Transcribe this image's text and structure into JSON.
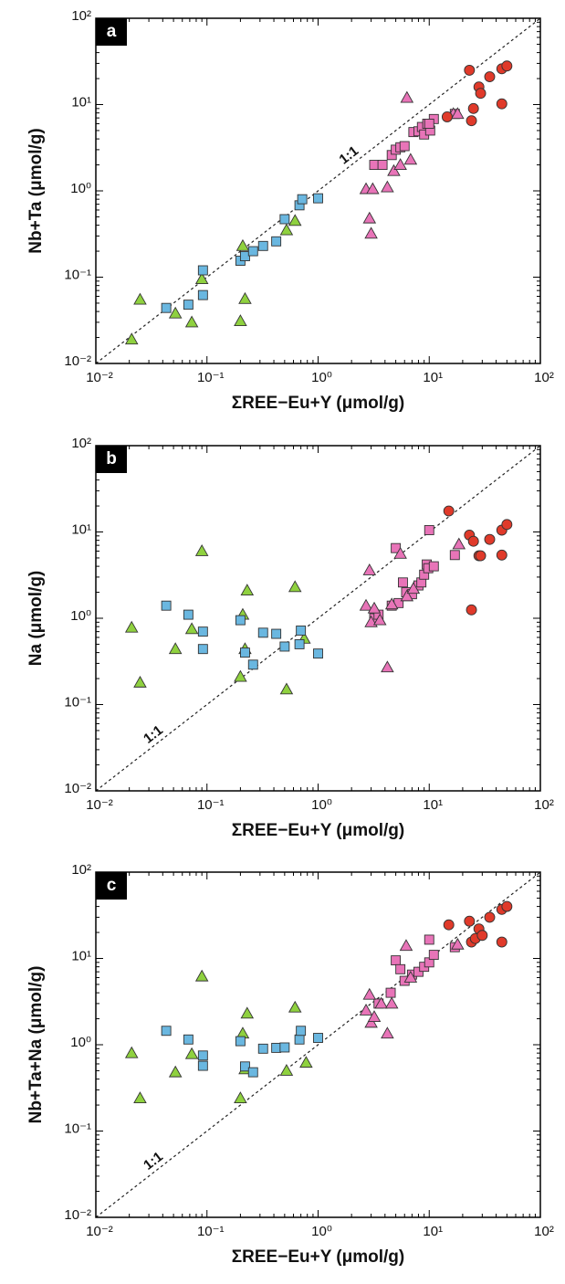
{
  "chart_data": [
    {
      "type": "scatter",
      "panel_label": "a",
      "x_label": "ΣREE−Eu+Y (μmol/g)",
      "y_label": "Nb+Ta (μmol/g)",
      "annotation": "1:1",
      "diagonal": true,
      "log_x": true,
      "log_y": true,
      "xlim": [
        0.01,
        100
      ],
      "ylim": [
        0.01,
        100
      ],
      "xticks": [
        {
          "value": 0.01,
          "label": "10⁻²"
        },
        {
          "value": 0.1,
          "label": "10⁻¹"
        },
        {
          "value": 1,
          "label": "10⁰"
        },
        {
          "value": 10,
          "label": "10¹"
        },
        {
          "value": 100,
          "label": "10²"
        }
      ],
      "yticks": [
        {
          "value": 0.01,
          "label": "10⁻²"
        },
        {
          "value": 0.1,
          "label": "10⁻¹"
        },
        {
          "value": 1,
          "label": "10⁰"
        },
        {
          "value": 10,
          "label": "10¹"
        },
        {
          "value": 100,
          "label": "10²"
        }
      ],
      "series": [
        {
          "marker": "triangle",
          "color": "#8fd13f",
          "x": [
            0.021,
            0.025,
            0.052,
            0.073,
            0.09,
            0.2,
            0.21,
            0.22,
            0.52,
            0.62
          ],
          "values": [
            0.019,
            0.055,
            0.038,
            0.03,
            0.095,
            0.031,
            0.23,
            0.056,
            0.35,
            0.45
          ]
        },
        {
          "marker": "square",
          "color": "#6ab7e0",
          "x": [
            0.043,
            0.068,
            0.092,
            0.092,
            0.2,
            0.22,
            0.26,
            0.32,
            0.42,
            0.5,
            0.68,
            0.72,
            1.0
          ],
          "values": [
            0.044,
            0.048,
            0.062,
            0.12,
            0.155,
            0.175,
            0.2,
            0.23,
            0.26,
            0.47,
            0.68,
            0.8,
            0.82
          ]
        },
        {
          "marker": "square",
          "color": "#e874b8",
          "x": [
            3.2,
            3.8,
            4.6,
            5.0,
            5.5,
            6.0,
            7.2,
            8.0,
            8.6,
            9.0,
            9.6,
            10.2,
            11,
            17,
            10
          ],
          "values": [
            2.0,
            2.0,
            2.6,
            3.0,
            3.2,
            3.3,
            4.8,
            4.9,
            5.5,
            4.5,
            6.0,
            5.0,
            6.8,
            7.8,
            6.0
          ]
        },
        {
          "marker": "triangle",
          "color": "#e874b8",
          "x": [
            2.7,
            2.9,
            3.0,
            3.1,
            4.2,
            4.8,
            6.3,
            6.8,
            16.5,
            18,
            5.5
          ],
          "values": [
            1.05,
            0.48,
            0.32,
            1.05,
            1.1,
            1.7,
            12.0,
            2.3,
            7.8,
            7.8,
            2.0
          ]
        },
        {
          "marker": "circle",
          "color": "#e03a2a",
          "x": [
            14.5,
            23,
            24,
            25,
            28,
            29,
            35,
            45,
            45,
            50
          ],
          "values": [
            7.2,
            25,
            6.5,
            9,
            16,
            13.5,
            21,
            10.2,
            26,
            28
          ]
        }
      ]
    },
    {
      "type": "scatter",
      "panel_label": "b",
      "x_label": "ΣREE−Eu+Y (μmol/g)",
      "y_label": "Na (μmol/g)",
      "annotation": "1:1",
      "diagonal": true,
      "log_x": true,
      "log_y": true,
      "xlim": [
        0.01,
        100
      ],
      "ylim": [
        0.01,
        100
      ],
      "xticks": [
        {
          "value": 0.01,
          "label": "10⁻²"
        },
        {
          "value": 0.1,
          "label": "10⁻¹"
        },
        {
          "value": 1,
          "label": "10⁰"
        },
        {
          "value": 10,
          "label": "10¹"
        },
        {
          "value": 100,
          "label": "10²"
        }
      ],
      "yticks": [
        {
          "value": 0.01,
          "label": "10⁻²"
        },
        {
          "value": 0.1,
          "label": "10⁻¹"
        },
        {
          "value": 1,
          "label": "10⁰"
        },
        {
          "value": 10,
          "label": "10¹"
        },
        {
          "value": 100,
          "label": "10²"
        }
      ],
      "series": [
        {
          "marker": "triangle",
          "color": "#8fd13f",
          "x": [
            0.021,
            0.025,
            0.052,
            0.073,
            0.09,
            0.2,
            0.21,
            0.22,
            0.23,
            0.52,
            0.62,
            0.75
          ],
          "values": [
            0.78,
            0.18,
            0.44,
            0.75,
            6.0,
            0.21,
            1.1,
            0.44,
            2.1,
            0.15,
            2.3,
            0.58
          ]
        },
        {
          "marker": "square",
          "color": "#6ab7e0",
          "x": [
            0.043,
            0.068,
            0.092,
            0.092,
            0.2,
            0.22,
            0.26,
            0.32,
            0.42,
            0.5,
            0.68,
            0.7,
            1.0
          ],
          "values": [
            1.4,
            1.1,
            0.7,
            0.44,
            0.95,
            0.4,
            0.29,
            0.68,
            0.66,
            0.47,
            0.5,
            0.72,
            0.39
          ]
        },
        {
          "marker": "square",
          "color": "#e874b8",
          "x": [
            3.2,
            3.5,
            4.6,
            5.0,
            5.3,
            5.8,
            6.2,
            7.0,
            8.0,
            8.5,
            9.0,
            9.5,
            9.8,
            10,
            11,
            17
          ],
          "values": [
            1.0,
            1.1,
            1.4,
            6.5,
            1.5,
            2.6,
            2.0,
            1.9,
            2.4,
            2.6,
            3.2,
            4.2,
            3.8,
            10.5,
            4.0,
            5.4
          ]
        },
        {
          "marker": "triangle",
          "color": "#e874b8",
          "x": [
            2.7,
            2.9,
            3.0,
            3.2,
            4.2,
            4.6,
            5.5,
            6.3,
            7.2,
            18.5,
            3.6
          ],
          "values": [
            1.4,
            3.6,
            0.9,
            1.3,
            0.27,
            1.45,
            5.6,
            1.8,
            2.2,
            7.2,
            0.95
          ]
        },
        {
          "marker": "circle",
          "color": "#e03a2a",
          "x": [
            15,
            23,
            24,
            25,
            28,
            29,
            35,
            45,
            45,
            50
          ],
          "values": [
            17.5,
            9.2,
            1.25,
            7.8,
            5.3,
            5.3,
            8.2,
            10.5,
            5.4,
            12.2
          ]
        }
      ]
    },
    {
      "type": "scatter",
      "panel_label": "c",
      "x_label": "ΣREE−Eu+Y (μmol/g)",
      "y_label": "Nb+Ta+Na (μmol/g)",
      "annotation": "1:1",
      "diagonal": true,
      "log_x": true,
      "log_y": true,
      "xlim": [
        0.01,
        100
      ],
      "ylim": [
        0.01,
        100
      ],
      "xticks": [
        {
          "value": 0.01,
          "label": "10⁻²"
        },
        {
          "value": 0.1,
          "label": "10⁻¹"
        },
        {
          "value": 1,
          "label": "10⁰"
        },
        {
          "value": 10,
          "label": "10¹"
        },
        {
          "value": 100,
          "label": "10²"
        }
      ],
      "yticks": [
        {
          "value": 0.01,
          "label": "10⁻²"
        },
        {
          "value": 0.1,
          "label": "10⁻¹"
        },
        {
          "value": 1,
          "label": "10⁰"
        },
        {
          "value": 10,
          "label": "10¹"
        },
        {
          "value": 100,
          "label": "10²"
        }
      ],
      "series": [
        {
          "marker": "triangle",
          "color": "#8fd13f",
          "x": [
            0.021,
            0.025,
            0.052,
            0.073,
            0.09,
            0.2,
            0.21,
            0.22,
            0.23,
            0.52,
            0.62,
            0.78
          ],
          "values": [
            0.8,
            0.24,
            0.48,
            0.78,
            6.2,
            0.24,
            1.35,
            0.52,
            2.3,
            0.5,
            2.7,
            0.62
          ]
        },
        {
          "marker": "square",
          "color": "#6ab7e0",
          "x": [
            0.043,
            0.068,
            0.092,
            0.092,
            0.2,
            0.22,
            0.26,
            0.32,
            0.42,
            0.5,
            0.68,
            0.7,
            1.0
          ],
          "values": [
            1.45,
            1.15,
            0.75,
            0.57,
            1.1,
            0.56,
            0.48,
            0.9,
            0.92,
            0.93,
            1.15,
            1.45,
            1.2
          ]
        },
        {
          "marker": "square",
          "color": "#e874b8",
          "x": [
            5.0,
            5.5,
            6.0,
            7.0,
            8.0,
            9.0,
            10,
            10,
            11,
            17,
            4.5,
            3.5
          ],
          "values": [
            9.5,
            7.5,
            5.5,
            6.5,
            7.0,
            8.0,
            16.5,
            9.0,
            11,
            13.5,
            4.0,
            3.0
          ]
        },
        {
          "marker": "triangle",
          "color": "#e874b8",
          "x": [
            2.7,
            2.9,
            3.0,
            3.2,
            3.7,
            4.2,
            4.6,
            6.2,
            6.8,
            18
          ],
          "values": [
            2.5,
            3.8,
            1.8,
            2.1,
            3.0,
            1.35,
            3.0,
            14,
            6.0,
            14.5
          ]
        },
        {
          "marker": "circle",
          "color": "#e03a2a",
          "x": [
            15,
            23,
            24,
            26,
            28,
            30,
            35,
            45,
            45,
            50
          ],
          "values": [
            24.5,
            27,
            15.5,
            17,
            22,
            18.5,
            30,
            15.5,
            37,
            40
          ]
        }
      ]
    }
  ]
}
